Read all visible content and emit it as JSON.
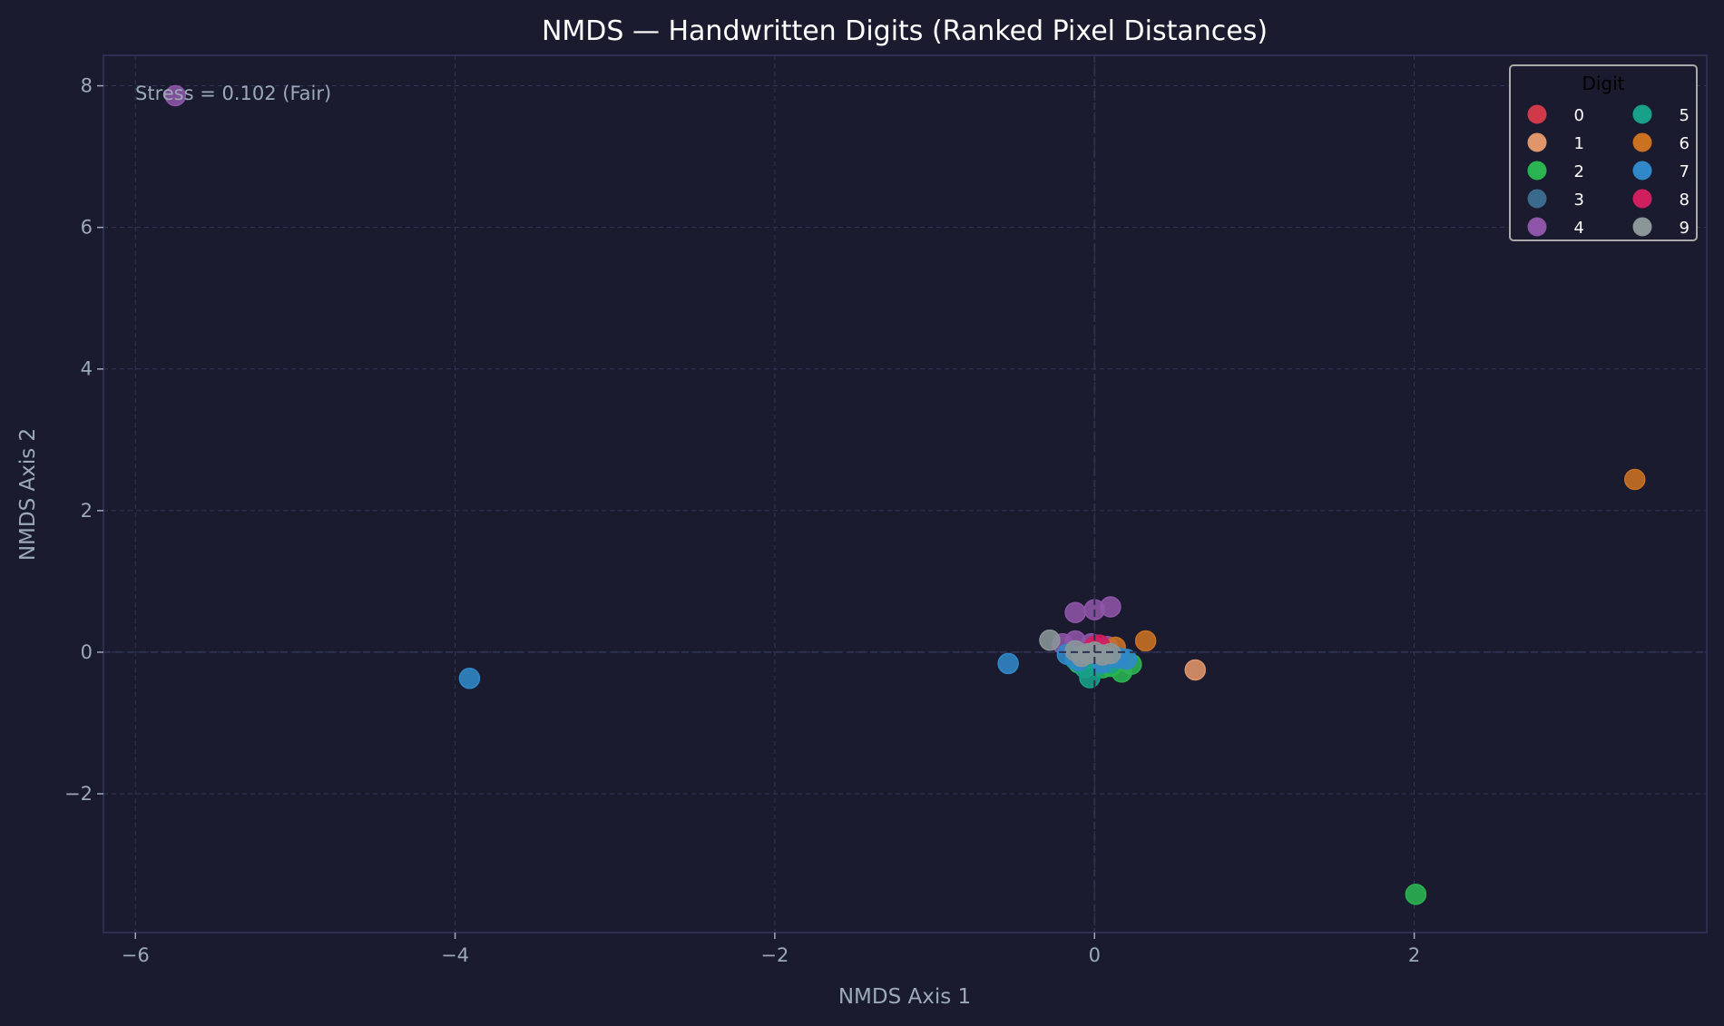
{
  "chart_data": {
    "type": "scatter",
    "title": "NMDS — Handwritten Digits (Ranked Pixel Distances)",
    "xlabel": "NMDS Axis 1",
    "ylabel": "NMDS Axis 2",
    "xlim": [
      -6.2,
      3.83
    ],
    "ylim": [
      -3.96,
      8.43
    ],
    "xticks": [
      -6,
      -4,
      -2,
      0,
      2
    ],
    "yticks": [
      -2,
      0,
      2,
      4,
      6,
      8
    ],
    "grid": true,
    "annotation": "Stress = 0.102 (Fair)",
    "legend": {
      "title": "Digit",
      "placement": "top-right",
      "columns": 2
    },
    "series": [
      {
        "name": "0",
        "color": "#d03a48",
        "points": [
          [
            0.0,
            0.05
          ],
          [
            0.05,
            0.0
          ],
          [
            -0.05,
            -0.05
          ],
          [
            0.08,
            -0.08
          ]
        ]
      },
      {
        "name": "1",
        "color": "#e0956a",
        "points": [
          [
            0.63,
            -0.25
          ],
          [
            0.02,
            -0.02
          ],
          [
            -0.02,
            0.02
          ]
        ]
      },
      {
        "name": "2",
        "color": "#2bb552",
        "points": [
          [
            2.01,
            -3.42
          ],
          [
            0.23,
            -0.17
          ],
          [
            0.17,
            -0.28
          ],
          [
            -0.1,
            -0.15
          ],
          [
            0.1,
            -0.2
          ],
          [
            0.05,
            -0.22
          ],
          [
            0.18,
            -0.12
          ]
        ]
      },
      {
        "name": "3",
        "color": "#3a6a8c",
        "points": [
          [
            -0.05,
            -0.1
          ],
          [
            0.05,
            -0.05
          ],
          [
            0.0,
            -0.12
          ]
        ]
      },
      {
        "name": "4",
        "color": "#8e55a8",
        "points": [
          [
            -5.75,
            7.86
          ],
          [
            -0.12,
            0.56
          ],
          [
            0.0,
            0.6
          ],
          [
            0.1,
            0.64
          ],
          [
            -0.12,
            0.16
          ],
          [
            -0.02,
            0.12
          ],
          [
            0.08,
            0.08
          ],
          [
            -0.2,
            0.12
          ]
        ]
      },
      {
        "name": "5",
        "color": "#18a08a",
        "points": [
          [
            -0.03,
            -0.36
          ],
          [
            -0.06,
            -0.22
          ],
          [
            0.02,
            -0.18
          ],
          [
            0.1,
            -0.15
          ],
          [
            -0.12,
            -0.1
          ]
        ]
      },
      {
        "name": "6",
        "color": "#cb7222",
        "points": [
          [
            3.38,
            2.44
          ],
          [
            0.32,
            0.16
          ],
          [
            0.13,
            0.07
          ]
        ]
      },
      {
        "name": "7",
        "color": "#3088c8",
        "points": [
          [
            -3.91,
            -0.37
          ],
          [
            -0.54,
            -0.16
          ],
          [
            -0.17,
            -0.03
          ],
          [
            0.15,
            -0.08
          ],
          [
            -0.1,
            -0.12
          ],
          [
            0.05,
            -0.15
          ],
          [
            0.2,
            -0.1
          ]
        ]
      },
      {
        "name": "8",
        "color": "#d01f5e",
        "points": [
          [
            0.0,
            0.08
          ],
          [
            0.03,
            0.1
          ]
        ]
      },
      {
        "name": "9",
        "color": "#8a9698",
        "points": [
          [
            -0.28,
            0.17
          ],
          [
            -0.12,
            0.02
          ],
          [
            -0.04,
            -0.02
          ],
          [
            0.05,
            -0.04
          ],
          [
            0.1,
            -0.02
          ],
          [
            -0.08,
            -0.06
          ],
          [
            0.0,
            0.0
          ]
        ]
      }
    ]
  }
}
